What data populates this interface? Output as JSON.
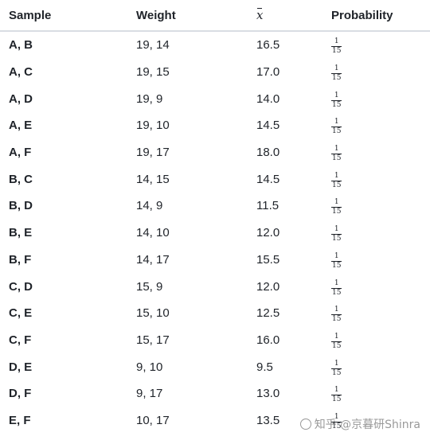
{
  "table": {
    "headers": {
      "sample": "Sample",
      "weight": "Weight",
      "mean": "x",
      "probability": "Probability"
    },
    "rows": [
      {
        "sample": "A, B",
        "weight": "19, 14",
        "mean": "16.5",
        "prob_num": "1",
        "prob_den": "15"
      },
      {
        "sample": "A, C",
        "weight": "19, 15",
        "mean": "17.0",
        "prob_num": "1",
        "prob_den": "15"
      },
      {
        "sample": "A, D",
        "weight": "19, 9",
        "mean": "14.0",
        "prob_num": "1",
        "prob_den": "15"
      },
      {
        "sample": "A, E",
        "weight": "19, 10",
        "mean": "14.5",
        "prob_num": "1",
        "prob_den": "15"
      },
      {
        "sample": "A, F",
        "weight": "19, 17",
        "mean": "18.0",
        "prob_num": "1",
        "prob_den": "15"
      },
      {
        "sample": "B, C",
        "weight": "14, 15",
        "mean": "14.5",
        "prob_num": "1",
        "prob_den": "15"
      },
      {
        "sample": "B, D",
        "weight": "14, 9",
        "mean": "11.5",
        "prob_num": "1",
        "prob_den": "15"
      },
      {
        "sample": "B, E",
        "weight": "14, 10",
        "mean": "12.0",
        "prob_num": "1",
        "prob_den": "15"
      },
      {
        "sample": "B, F",
        "weight": "14, 17",
        "mean": "15.5",
        "prob_num": "1",
        "prob_den": "15"
      },
      {
        "sample": "C, D",
        "weight": "15, 9",
        "mean": "12.0",
        "prob_num": "1",
        "prob_den": "15"
      },
      {
        "sample": "C, E",
        "weight": "15, 10",
        "mean": "12.5",
        "prob_num": "1",
        "prob_den": "15"
      },
      {
        "sample": "C, F",
        "weight": "15, 17",
        "mean": "16.0",
        "prob_num": "1",
        "prob_den": "15"
      },
      {
        "sample": "D, E",
        "weight": "9, 10",
        "mean": "9.5",
        "prob_num": "1",
        "prob_den": "15"
      },
      {
        "sample": "D, F",
        "weight": "9, 17",
        "mean": "13.0",
        "prob_num": "1",
        "prob_den": "15"
      },
      {
        "sample": "E, F",
        "weight": "10, 17",
        "mean": "13.5",
        "prob_num": "1",
        "prob_den": "15"
      }
    ]
  },
  "watermark": {
    "text": "知乎 @京暮研Shinra"
  }
}
